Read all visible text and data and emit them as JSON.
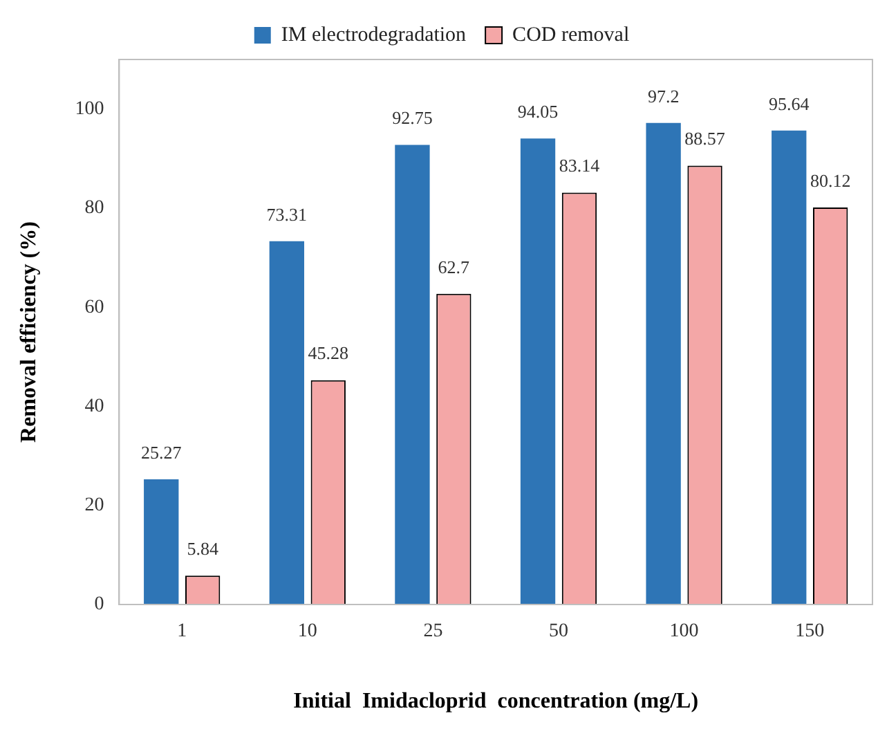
{
  "chart_data": {
    "type": "bar",
    "xlabel": "Initial  Imidacloprid  concentration (mg/L)",
    "ylabel": "Removal efficiency (%)",
    "categories": [
      "1",
      "10",
      "25",
      "50",
      "100",
      "150"
    ],
    "series": [
      {
        "name": "IM electrodegradation",
        "color": "#2e75b6",
        "values": [
          25.27,
          73.31,
          92.75,
          94.05,
          97.2,
          95.64
        ]
      },
      {
        "name": "COD removal",
        "color": "#f4a7a7",
        "values": [
          5.84,
          45.28,
          62.7,
          83.14,
          88.57,
          80.12
        ]
      }
    ],
    "ylim": [
      0,
      110
    ],
    "yticks": [
      0,
      20,
      40,
      60,
      80,
      100
    ],
    "grid": false,
    "legend": "top",
    "data_labels": true
  }
}
